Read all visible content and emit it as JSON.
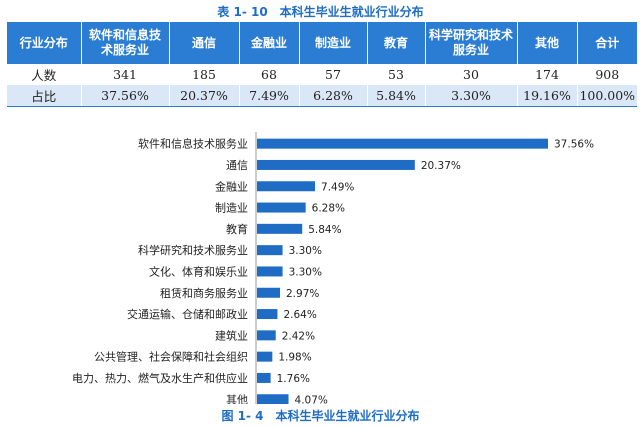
{
  "table": {
    "caption": "表 1- 10　本科生毕业生就业行业分布",
    "headers": [
      "行业分布",
      "软件和信息技术服务业",
      "通信",
      "金融业",
      "制造业",
      "教育",
      "科学研究和技术服务业",
      "其他",
      "合计"
    ],
    "rows": [
      [
        "人数",
        "341",
        "185",
        "68",
        "57",
        "53",
        "30",
        "174",
        "908"
      ],
      [
        "占比",
        "37.56%",
        "20.37%",
        "7.49%",
        "6.28%",
        "5.84%",
        "3.30%",
        "19.16%",
        "100.00%"
      ]
    ]
  },
  "figure": {
    "caption": "图 1- 4　本科生毕业生就业行业分布"
  },
  "chart_data": {
    "type": "bar",
    "orientation": "horizontal",
    "categories": [
      "软件和信息技术服务业",
      "通信",
      "金融业",
      "制造业",
      "教育",
      "科学研究和技术服务业",
      "文化、体育和娱乐业",
      "租赁和商务服务业",
      "交通运输、仓储和邮政业",
      "建筑业",
      "公共管理、社会保障和社会组织",
      "电力、热力、燃气及水生产和供应业",
      "其他"
    ],
    "values": [
      37.56,
      20.37,
      7.49,
      6.28,
      5.84,
      3.3,
      3.3,
      2.97,
      2.64,
      2.42,
      1.98,
      1.76,
      4.07
    ],
    "labels": [
      "37.56%",
      "20.37%",
      "7.49%",
      "6.28%",
      "5.84%",
      "3.30%",
      "3.30%",
      "2.97%",
      "2.64%",
      "2.42%",
      "1.98%",
      "1.76%",
      "4.07%"
    ],
    "bar_color": "#1f6cc4",
    "grid": false
  }
}
